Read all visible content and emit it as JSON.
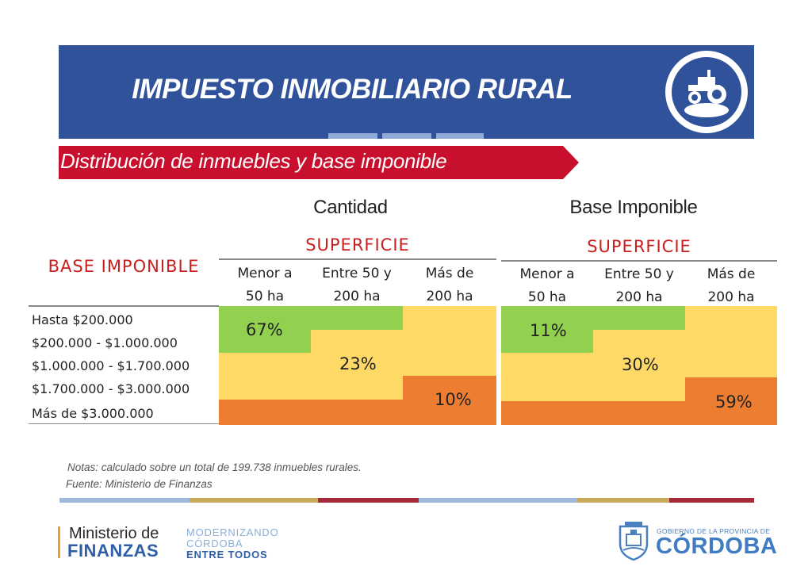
{
  "header": {
    "title": "IMPUESTO INMOBILIARIO RURAL",
    "icon": "tractor-icon",
    "colors": {
      "banner": "#2f529b",
      "subtitle_band": "#c8102e"
    }
  },
  "subtitle": "Distribución de inmuebles y base imponible",
  "table": {
    "row_header": "BASE IMPONIBLE",
    "row_labels": [
      "Hasta $200.000",
      "$200.000 - $1.000.000",
      "$1.000.000 - $1.700.000",
      "$1.700.000 - $3.000.000",
      "Más de $3.000.000"
    ],
    "panels": [
      {
        "title": "Cantidad",
        "group_header": "SUPERFICIE",
        "columns": [
          {
            "line1": "Menor a",
            "line2": "50 ha"
          },
          {
            "line1": "Entre 50 y",
            "line2": "200 ha"
          },
          {
            "line1": "Más de",
            "line2": "200 ha"
          }
        ],
        "groups": [
          {
            "label": "67%",
            "value": 67,
            "color": "#92d050"
          },
          {
            "label": "23%",
            "value": 23,
            "color": "#ffd966"
          },
          {
            "label": "10%",
            "value": 10,
            "color": "#ed7d31"
          }
        ]
      },
      {
        "title": "Base Imponible",
        "group_header": "SUPERFICIE",
        "columns": [
          {
            "line1": "Menor a",
            "line2": "50 ha"
          },
          {
            "line1": "Entre 50 y",
            "line2": "200 ha"
          },
          {
            "line1": "Más de",
            "line2": "200 ha"
          }
        ],
        "groups": [
          {
            "label": "11%",
            "value": 11,
            "color": "#92d050"
          },
          {
            "label": "30%",
            "value": 30,
            "color": "#ffd966"
          },
          {
            "label": "59%",
            "value": 59,
            "color": "#ed7d31"
          }
        ]
      }
    ]
  },
  "notes": {
    "line1": "Notas: calculado sobre un total de 199.738 inmuebles rurales.",
    "line2": "Fuente: Ministerio de Finanzas"
  },
  "footer": {
    "ministry_line1": "Ministerio de",
    "ministry_line2": "FINANZAS",
    "tagline": [
      "MODERNIZANDO",
      "CÓRDOBA",
      "ENTRE TODOS"
    ],
    "gov_line1": "GOBIERNO DE LA PROVINCIA DE",
    "gov_line2": "CÓRDOBA",
    "gov_icon": "coat-of-arms-icon"
  }
}
